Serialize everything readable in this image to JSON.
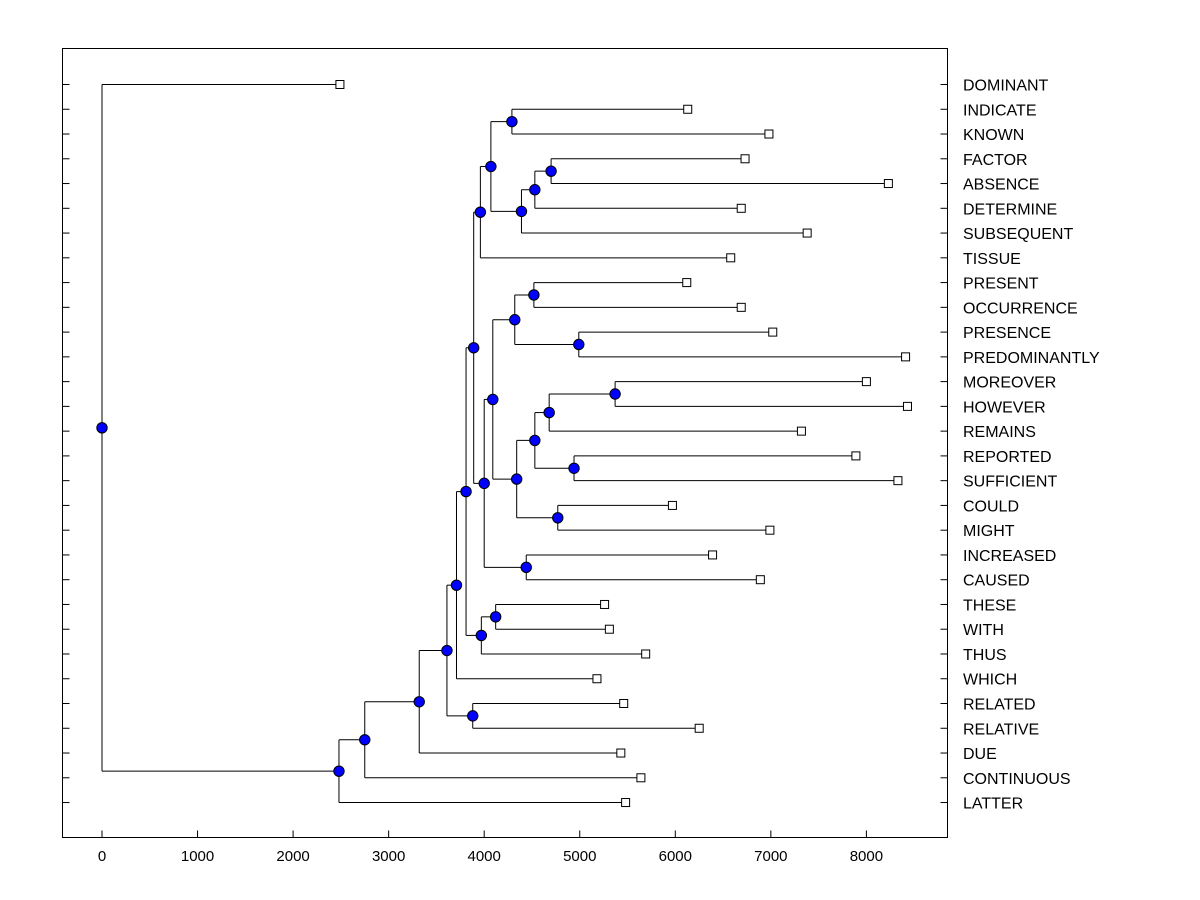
{
  "chart_data": {
    "type": "dendrogram",
    "title": "",
    "xlabel": "",
    "ylabel": "",
    "xlim": [
      -400,
      8800
    ],
    "x_ticks": [
      0,
      1000,
      2000,
      3000,
      4000,
      5000,
      6000,
      7000,
      8000
    ],
    "x_tick_labels": [
      "0",
      "1000",
      "2000",
      "3000",
      "4000",
      "5000",
      "6000",
      "7000",
      "8000"
    ],
    "leaves": [
      {
        "label": "DOMINANT",
        "value": 2490
      },
      {
        "label": "INDICATE",
        "value": 6130
      },
      {
        "label": "KNOWN",
        "value": 6980
      },
      {
        "label": "FACTOR",
        "value": 6730
      },
      {
        "label": "ABSENCE",
        "value": 8230
      },
      {
        "label": "DETERMINE",
        "value": 6690
      },
      {
        "label": "SUBSEQUENT",
        "value": 7380
      },
      {
        "label": "TISSUE",
        "value": 6580
      },
      {
        "label": "PRESENT",
        "value": 6120
      },
      {
        "label": "OCCURRENCE",
        "value": 6690
      },
      {
        "label": "PRESENCE",
        "value": 7020
      },
      {
        "label": "PREDOMINANTLY",
        "value": 8410
      },
      {
        "label": "MOREOVER",
        "value": 8000
      },
      {
        "label": "HOWEVER",
        "value": 8430
      },
      {
        "label": "REMAINS",
        "value": 7320
      },
      {
        "label": "REPORTED",
        "value": 7890
      },
      {
        "label": "SUFFICIENT",
        "value": 8330
      },
      {
        "label": "COULD",
        "value": 5970
      },
      {
        "label": "MIGHT",
        "value": 6990
      },
      {
        "label": "INCREASED",
        "value": 6390
      },
      {
        "label": "CAUSED",
        "value": 6890
      },
      {
        "label": "THESE",
        "value": 5260
      },
      {
        "label": "WITH",
        "value": 5310
      },
      {
        "label": "THUS",
        "value": 5690
      },
      {
        "label": "WHICH",
        "value": 5180
      },
      {
        "label": "RELATED",
        "value": 5460
      },
      {
        "label": "RELATIVE",
        "value": 6250
      },
      {
        "label": "DUE",
        "value": 5430
      },
      {
        "label": "CONTINUOUS",
        "value": 5640
      },
      {
        "label": "LATTER",
        "value": 5480
      }
    ],
    "merges": [
      {
        "id": "n1",
        "value": 4290,
        "children": [
          "INDICATE",
          "KNOWN"
        ]
      },
      {
        "id": "n2",
        "value": 4700,
        "children": [
          "FACTOR",
          "ABSENCE"
        ]
      },
      {
        "id": "n3",
        "value": 4530,
        "children": [
          "n2",
          "DETERMINE"
        ]
      },
      {
        "id": "n4",
        "value": 4390,
        "children": [
          "n3",
          "SUBSEQUENT"
        ]
      },
      {
        "id": "n5",
        "value": 4070,
        "children": [
          "n1",
          "n4"
        ]
      },
      {
        "id": "n6",
        "value": 3960,
        "children": [
          "n5",
          "TISSUE"
        ]
      },
      {
        "id": "n7",
        "value": 4520,
        "children": [
          "PRESENT",
          "OCCURRENCE"
        ]
      },
      {
        "id": "n8",
        "value": 4990,
        "children": [
          "PRESENCE",
          "PREDOMINANTLY"
        ]
      },
      {
        "id": "n9",
        "value": 4320,
        "children": [
          "n7",
          "n8"
        ]
      },
      {
        "id": "n10",
        "value": 5370,
        "children": [
          "MOREOVER",
          "HOWEVER"
        ]
      },
      {
        "id": "n11",
        "value": 4680,
        "children": [
          "n10",
          "REMAINS"
        ]
      },
      {
        "id": "n12",
        "value": 4940,
        "children": [
          "REPORTED",
          "SUFFICIENT"
        ]
      },
      {
        "id": "n13",
        "value": 4530,
        "children": [
          "n11",
          "n12"
        ]
      },
      {
        "id": "n14",
        "value": 4770,
        "children": [
          "COULD",
          "MIGHT"
        ]
      },
      {
        "id": "n15",
        "value": 4340,
        "children": [
          "n13",
          "n14"
        ]
      },
      {
        "id": "n16",
        "value": 4090,
        "children": [
          "n9",
          "n15"
        ]
      },
      {
        "id": "n17",
        "value": 4440,
        "children": [
          "INCREASED",
          "CAUSED"
        ]
      },
      {
        "id": "n18",
        "value": 4000,
        "children": [
          "n16",
          "n17"
        ]
      },
      {
        "id": "n19",
        "value": 3890,
        "children": [
          "n6",
          "n18"
        ]
      },
      {
        "id": "n20",
        "value": 4120,
        "children": [
          "THESE",
          "WITH"
        ]
      },
      {
        "id": "n21",
        "value": 3970,
        "children": [
          "n20",
          "THUS"
        ]
      },
      {
        "id": "n22",
        "value": 3810,
        "children": [
          "n19",
          "n21"
        ]
      },
      {
        "id": "n23",
        "value": 3710,
        "children": [
          "n22",
          "WHICH"
        ]
      },
      {
        "id": "n24",
        "value": 3880,
        "children": [
          "RELATED",
          "RELATIVE"
        ]
      },
      {
        "id": "n25",
        "value": 3610,
        "children": [
          "n23",
          "n24"
        ]
      },
      {
        "id": "n26",
        "value": 3320,
        "children": [
          "n25",
          "DUE"
        ]
      },
      {
        "id": "n27",
        "value": 2750,
        "children": [
          "n26",
          "CONTINUOUS"
        ]
      },
      {
        "id": "n28",
        "value": 2480,
        "children": [
          "n27",
          "LATTER"
        ]
      },
      {
        "id": "n29",
        "value": 0,
        "children": [
          "DOMINANT",
          "n28"
        ]
      }
    ],
    "colors": {
      "node": "#0000ff",
      "lines": "#000000",
      "leaf_marker": "#ffffff"
    },
    "grid": false,
    "legend": "none"
  }
}
